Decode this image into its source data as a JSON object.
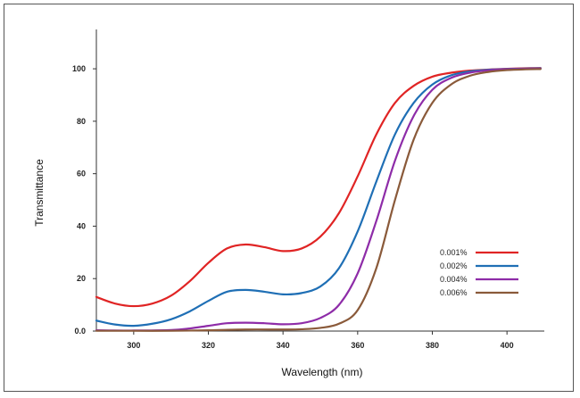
{
  "chart_data": {
    "type": "line",
    "title": "",
    "xlabel": "Wavelength (nm)",
    "ylabel": "Transmittance",
    "xlim": [
      290,
      410
    ],
    "ylim": [
      0,
      115
    ],
    "x_ticks": [
      "300",
      "320",
      "340",
      "360",
      "380",
      "400"
    ],
    "y_ticks": [
      "0.0",
      "20",
      "40",
      "60",
      "80",
      "100"
    ],
    "grid": false,
    "legend_position": "right",
    "series": [
      {
        "name": "0.001%",
        "color": "#e02424",
        "points": [
          [
            290,
            13
          ],
          [
            295,
            10.5
          ],
          [
            300,
            9.5
          ],
          [
            305,
            10.5
          ],
          [
            310,
            13.5
          ],
          [
            315,
            19
          ],
          [
            320,
            26
          ],
          [
            325,
            31.5
          ],
          [
            330,
            33
          ],
          [
            335,
            32
          ],
          [
            340,
            30.5
          ],
          [
            345,
            31.5
          ],
          [
            350,
            36
          ],
          [
            355,
            45
          ],
          [
            360,
            59
          ],
          [
            365,
            75
          ],
          [
            370,
            87
          ],
          [
            375,
            93.5
          ],
          [
            380,
            97
          ],
          [
            385,
            98.5
          ],
          [
            390,
            99.3
          ],
          [
            395,
            99.7
          ],
          [
            400,
            100
          ],
          [
            405,
            100.2
          ],
          [
            409,
            100.3
          ]
        ]
      },
      {
        "name": "0.002%",
        "color": "#1f6fb5",
        "points": [
          [
            290,
            4
          ],
          [
            295,
            2.5
          ],
          [
            300,
            2
          ],
          [
            305,
            2.8
          ],
          [
            310,
            4.5
          ],
          [
            315,
            7.5
          ],
          [
            320,
            11.5
          ],
          [
            325,
            15
          ],
          [
            330,
            15.7
          ],
          [
            335,
            15
          ],
          [
            340,
            14
          ],
          [
            345,
            14.5
          ],
          [
            350,
            17
          ],
          [
            355,
            24
          ],
          [
            360,
            38
          ],
          [
            365,
            57
          ],
          [
            370,
            75
          ],
          [
            375,
            87
          ],
          [
            380,
            94
          ],
          [
            385,
            97.5
          ],
          [
            390,
            99
          ],
          [
            395,
            99.6
          ],
          [
            400,
            99.9
          ],
          [
            405,
            100.1
          ],
          [
            409,
            100.2
          ]
        ]
      },
      {
        "name": "0.004%",
        "color": "#8e2ca8",
        "points": [
          [
            290,
            0.3
          ],
          [
            300,
            0.2
          ],
          [
            310,
            0.4
          ],
          [
            315,
            1
          ],
          [
            320,
            2
          ],
          [
            325,
            3
          ],
          [
            330,
            3.2
          ],
          [
            335,
            3
          ],
          [
            340,
            2.6
          ],
          [
            345,
            3
          ],
          [
            350,
            5
          ],
          [
            355,
            10
          ],
          [
            360,
            22
          ],
          [
            365,
            42
          ],
          [
            370,
            65
          ],
          [
            375,
            82
          ],
          [
            380,
            92
          ],
          [
            385,
            96.5
          ],
          [
            390,
            98.5
          ],
          [
            395,
            99.4
          ],
          [
            400,
            99.8
          ],
          [
            405,
            100
          ],
          [
            409,
            100.1
          ]
        ]
      },
      {
        "name": "0.006%",
        "color": "#8a5a3a",
        "points": [
          [
            290,
            0.1
          ],
          [
            300,
            0.1
          ],
          [
            310,
            0.1
          ],
          [
            320,
            0.3
          ],
          [
            330,
            0.6
          ],
          [
            340,
            0.6
          ],
          [
            345,
            0.7
          ],
          [
            350,
            1.2
          ],
          [
            355,
            2.8
          ],
          [
            360,
            8
          ],
          [
            365,
            24
          ],
          [
            370,
            50
          ],
          [
            375,
            73
          ],
          [
            380,
            87
          ],
          [
            385,
            94
          ],
          [
            390,
            97.3
          ],
          [
            395,
            98.8
          ],
          [
            400,
            99.5
          ],
          [
            405,
            99.8
          ],
          [
            409,
            99.9
          ]
        ]
      }
    ]
  }
}
